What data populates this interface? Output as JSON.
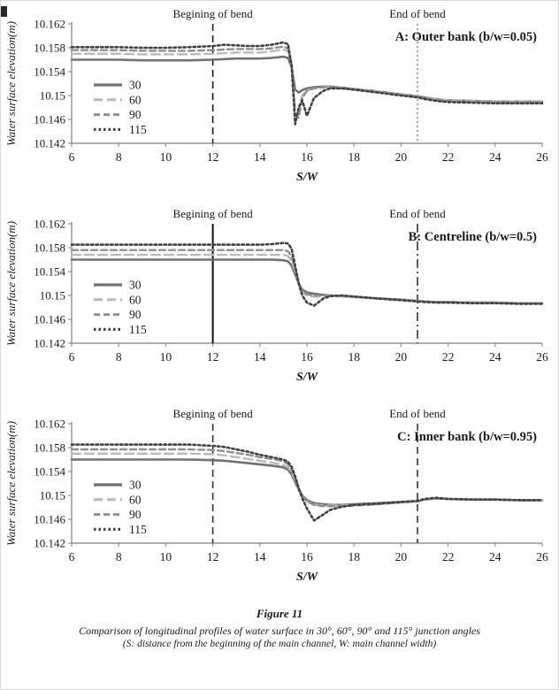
{
  "figure": {
    "caption_title": "Figure 11",
    "caption_line1": "Comparison of longitudinal profiles of water surface in 30°, 60°, 90° and 115° junction angles",
    "caption_line2": "(S: distance from the beginning of the main channel, W: main channel width)"
  },
  "chart_data": [
    {
      "type": "line",
      "panel_label": "A:  Outer bank (b/w=0.05)",
      "xlabel": "S/W",
      "ylabel": "Water surface elevation(m)",
      "xlim": [
        6,
        26
      ],
      "ylim": [
        10.142,
        10.162
      ],
      "xticks": [
        6,
        8,
        10,
        12,
        14,
        16,
        18,
        20,
        22,
        24,
        26
      ],
      "yticks": [
        10.142,
        10.146,
        10.15,
        10.154,
        10.158,
        10.162
      ],
      "ytick_labels": [
        "10.142",
        "10.146",
        "10.15",
        "10.154",
        "10.158",
        "10.162"
      ],
      "grid": false,
      "legend_position": "left-inside",
      "annotations": [
        {
          "label": "Begining of bend",
          "x": 12,
          "dash": "8,5",
          "color": "#1a1a1a",
          "width": 1.6
        },
        {
          "label": "End of bend",
          "x": 20.7,
          "dash": "2,3",
          "color": "#8c8c8c",
          "width": 1.6
        }
      ],
      "x": [
        6,
        7,
        8,
        9,
        10,
        11,
        12,
        12.5,
        13,
        13.5,
        14,
        14.5,
        15,
        15.2,
        15.35,
        15.5,
        15.65,
        15.8,
        16,
        16.3,
        16.7,
        17,
        17.5,
        18,
        19,
        20,
        20.7,
        21,
        21.5,
        22,
        23,
        24,
        25,
        26
      ],
      "series": [
        {
          "name": "30",
          "color": "#707070",
          "dash": "",
          "width": 2.6,
          "y": [
            10.156,
            10.156,
            10.156,
            10.1559,
            10.1559,
            10.1559,
            10.156,
            10.1561,
            10.1562,
            10.1562,
            10.1562,
            10.1563,
            10.1565,
            10.1563,
            10.1548,
            10.151,
            10.1505,
            10.1509,
            10.1512,
            10.1514,
            10.1515,
            10.1515,
            10.1513,
            10.1511,
            10.1507,
            10.1502,
            10.1499,
            10.1497,
            10.1494,
            10.1492,
            10.1491,
            10.149,
            10.149,
            10.149
          ]
        },
        {
          "name": "60",
          "color": "#b9b9b9",
          "dash": "10,5",
          "width": 2.4,
          "y": [
            10.157,
            10.157,
            10.157,
            10.1569,
            10.1569,
            10.1569,
            10.157,
            10.1571,
            10.1572,
            10.1572,
            10.1572,
            10.1574,
            10.1577,
            10.1574,
            10.1552,
            10.1478,
            10.1472,
            10.15,
            10.1509,
            10.1512,
            10.1514,
            10.1514,
            10.1513,
            10.1511,
            10.1507,
            10.1502,
            10.1499,
            10.1497,
            10.1494,
            10.1492,
            10.1491,
            10.149,
            10.149,
            10.149
          ]
        },
        {
          "name": "90",
          "color": "#8f8f8f",
          "dash": "7,4",
          "width": 2.4,
          "y": [
            10.1576,
            10.1576,
            10.1576,
            10.1575,
            10.1575,
            10.1575,
            10.1576,
            10.1577,
            10.1578,
            10.1578,
            10.1578,
            10.1579,
            10.1582,
            10.1579,
            10.1553,
            10.1468,
            10.1463,
            10.1496,
            10.1508,
            10.1512,
            10.1514,
            10.1514,
            10.1512,
            10.151,
            10.1506,
            10.1501,
            10.1498,
            10.1496,
            10.1493,
            10.1491,
            10.149,
            10.1489,
            10.1489,
            10.1489
          ]
        },
        {
          "name": "115",
          "color": "#404040",
          "dash": "2.5,3",
          "width": 2.6,
          "y": [
            10.1581,
            10.1581,
            10.1581,
            10.158,
            10.158,
            10.1581,
            10.1583,
            10.1585,
            10.1584,
            10.1583,
            10.1583,
            10.1585,
            10.1589,
            10.1586,
            10.155,
            10.1452,
            10.148,
            10.1492,
            10.1466,
            10.1496,
            10.1508,
            10.1512,
            10.1512,
            10.151,
            10.1505,
            10.15,
            10.1497,
            10.1494,
            10.1491,
            10.1489,
            10.1488,
            10.1487,
            10.1487,
            10.1487
          ]
        }
      ]
    },
    {
      "type": "line",
      "panel_label": "B: Centreline (b/w=0.5)",
      "xlabel": "S/W",
      "ylabel": "Water surface elevation(m)",
      "xlim": [
        6,
        26
      ],
      "ylim": [
        10.142,
        10.162
      ],
      "xticks": [
        6,
        8,
        10,
        12,
        14,
        16,
        18,
        20,
        22,
        24,
        26
      ],
      "yticks": [
        10.142,
        10.146,
        10.15,
        10.154,
        10.158,
        10.162
      ],
      "ytick_labels": [
        "10.142",
        "10.146",
        "10.15",
        "10.154",
        "10.158",
        "10.162"
      ],
      "grid": false,
      "legend_position": "left-inside",
      "annotations": [
        {
          "label": "Begining of bend",
          "x": 12,
          "dash": "",
          "color": "#111111",
          "width": 2
        },
        {
          "label": "End of bend",
          "x": 20.7,
          "dash": "10,4,2,4",
          "color": "#333333",
          "width": 1.6
        }
      ],
      "x": [
        6,
        7,
        8,
        9,
        10,
        11,
        12,
        12.5,
        13,
        13.5,
        14,
        14.5,
        15,
        15.2,
        15.35,
        15.5,
        15.65,
        15.8,
        16,
        16.3,
        16.7,
        17,
        17.5,
        18,
        19,
        20,
        20.7,
        21,
        21.5,
        22,
        23,
        24,
        25,
        26
      ],
      "series": [
        {
          "name": "30",
          "color": "#707070",
          "dash": "",
          "width": 2.6,
          "y": [
            10.156,
            10.156,
            10.156,
            10.156,
            10.156,
            10.156,
            10.156,
            10.156,
            10.156,
            10.156,
            10.156,
            10.156,
            10.1559,
            10.1557,
            10.155,
            10.1535,
            10.152,
            10.151,
            10.1505,
            10.1503,
            10.1501,
            10.15,
            10.1499,
            10.1498,
            10.1495,
            10.1493,
            10.1491,
            10.149,
            10.1489,
            10.1489,
            10.1488,
            10.1488,
            10.1487,
            10.1487
          ]
        },
        {
          "name": "60",
          "color": "#b9b9b9",
          "dash": "10,5",
          "width": 2.4,
          "y": [
            10.1568,
            10.1568,
            10.1568,
            10.1568,
            10.1568,
            10.1568,
            10.1568,
            10.1568,
            10.1568,
            10.1568,
            10.1568,
            10.1568,
            10.1568,
            10.1566,
            10.1558,
            10.154,
            10.152,
            10.1506,
            10.15,
            10.1498,
            10.1499,
            10.1499,
            10.1498,
            10.1497,
            10.1495,
            10.1492,
            10.1491,
            10.149,
            10.1489,
            10.1489,
            10.1488,
            10.1488,
            10.1487,
            10.1487
          ]
        },
        {
          "name": "90",
          "color": "#8f8f8f",
          "dash": "7,4",
          "width": 2.4,
          "y": [
            10.1576,
            10.1576,
            10.1576,
            10.1576,
            10.1576,
            10.1576,
            10.1576,
            10.1576,
            10.1576,
            10.1576,
            10.1576,
            10.1576,
            10.1576,
            10.1574,
            10.1565,
            10.1545,
            10.1522,
            10.1508,
            10.1502,
            10.15,
            10.15,
            10.15,
            10.1499,
            10.1498,
            10.1495,
            10.1493,
            10.1491,
            10.149,
            10.1489,
            10.1489,
            10.1488,
            10.1488,
            10.1487,
            10.1487
          ]
        },
        {
          "name": "115",
          "color": "#404040",
          "dash": "2.5,3",
          "width": 2.6,
          "y": [
            10.1585,
            10.1585,
            10.1585,
            10.1585,
            10.1585,
            10.1585,
            10.1585,
            10.1585,
            10.1585,
            10.1585,
            10.1585,
            10.1586,
            10.1588,
            10.1587,
            10.1578,
            10.155,
            10.152,
            10.15,
            10.1488,
            10.1483,
            10.1495,
            10.1499,
            10.15,
            10.1498,
            10.1495,
            10.1492,
            10.149,
            10.1489,
            10.1488,
            10.1488,
            10.1487,
            10.1487,
            10.1486,
            10.1486
          ]
        }
      ]
    },
    {
      "type": "line",
      "panel_label": "C: Inner bank (b/w=0.95)",
      "xlabel": "S/W",
      "ylabel": "Water surface elevation(m)",
      "xlim": [
        6,
        26
      ],
      "ylim": [
        10.142,
        10.162
      ],
      "xticks": [
        6,
        8,
        10,
        12,
        14,
        16,
        18,
        20,
        22,
        24,
        26
      ],
      "yticks": [
        10.142,
        10.146,
        10.15,
        10.154,
        10.158,
        10.162
      ],
      "ytick_labels": [
        "10.142",
        "10.146",
        "10.15",
        "10.154",
        "10.158",
        "10.162"
      ],
      "grid": false,
      "legend_position": "left-inside",
      "annotations": [
        {
          "label": "Begining of bend",
          "x": 12,
          "dash": "8,5",
          "color": "#333333",
          "width": 1.6
        },
        {
          "label": "End of bend",
          "x": 20.7,
          "dash": "8,5",
          "color": "#333333",
          "width": 1.6
        }
      ],
      "x": [
        6,
        7,
        8,
        9,
        10,
        11,
        12,
        12.5,
        13,
        13.5,
        14,
        14.5,
        15,
        15.2,
        15.35,
        15.5,
        15.65,
        15.8,
        16,
        16.3,
        16.7,
        17,
        17.5,
        18,
        19,
        20,
        20.7,
        21,
        21.5,
        22,
        23,
        24,
        25,
        26
      ],
      "series": [
        {
          "name": "30",
          "color": "#707070",
          "dash": "",
          "width": 2.6,
          "y": [
            10.156,
            10.156,
            10.156,
            10.156,
            10.156,
            10.156,
            10.1559,
            10.1558,
            10.1556,
            10.1554,
            10.1552,
            10.155,
            10.1547,
            10.1543,
            10.1535,
            10.1522,
            10.151,
            10.15,
            10.1492,
            10.1487,
            10.1485,
            10.1484,
            10.1484,
            10.1485,
            10.1487,
            10.1489,
            10.149,
            10.1493,
            10.1495,
            10.1494,
            10.1493,
            10.1493,
            10.1492,
            10.1492
          ]
        },
        {
          "name": "60",
          "color": "#b9b9b9",
          "dash": "10,5",
          "width": 2.4,
          "y": [
            10.157,
            10.157,
            10.157,
            10.157,
            10.157,
            10.157,
            10.1569,
            10.1567,
            10.1564,
            10.1561,
            10.1558,
            10.1555,
            10.1551,
            10.1547,
            10.1539,
            10.1525,
            10.151,
            10.1498,
            10.149,
            10.1485,
            10.1483,
            10.1483,
            10.1483,
            10.1484,
            10.1486,
            10.1488,
            10.149,
            10.1493,
            10.1495,
            10.1494,
            10.1493,
            10.1493,
            10.1492,
            10.1492
          ]
        },
        {
          "name": "90",
          "color": "#8f8f8f",
          "dash": "7,4",
          "width": 2.4,
          "y": [
            10.1577,
            10.1577,
            10.1577,
            10.1577,
            10.1577,
            10.1577,
            10.1576,
            10.1574,
            10.1571,
            10.1568,
            10.1564,
            10.1561,
            10.1557,
            10.1552,
            10.1543,
            10.1528,
            10.1512,
            10.1499,
            10.149,
            10.1484,
            10.1482,
            10.1482,
            10.1482,
            10.1483,
            10.1485,
            10.1488,
            10.149,
            10.1493,
            10.1495,
            10.1494,
            10.1493,
            10.1493,
            10.1492,
            10.1492
          ]
        },
        {
          "name": "115",
          "color": "#404040",
          "dash": "2.5,3",
          "width": 2.6,
          "y": [
            10.1585,
            10.1585,
            10.1585,
            10.1585,
            10.1585,
            10.1585,
            10.1583,
            10.1581,
            10.1577,
            10.1573,
            10.1568,
            10.1564,
            10.156,
            10.1556,
            10.1548,
            10.1532,
            10.1512,
            10.1495,
            10.1478,
            10.1458,
            10.1468,
            10.1476,
            10.1481,
            10.1484,
            10.1486,
            10.1489,
            10.1491,
            10.1494,
            10.1496,
            10.1494,
            10.1493,
            10.1493,
            10.1492,
            10.1492
          ]
        }
      ]
    }
  ]
}
